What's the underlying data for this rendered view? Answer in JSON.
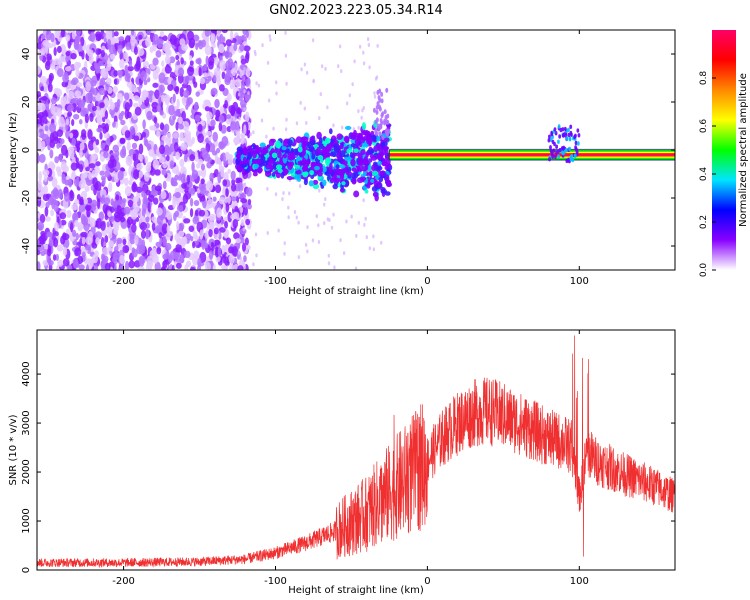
{
  "title": "GN02.2023.223.05.34.R14",
  "chart_data": [
    {
      "type": "heatmap",
      "xlabel": "Height of straight line (km)",
      "ylabel": "Frequency (Hz)",
      "xlim": [
        -257,
        163
      ],
      "ylim": [
        -50,
        50
      ],
      "xticks": [
        -200,
        -100,
        0,
        100
      ],
      "yticks": [
        -40,
        -20,
        0,
        20,
        40
      ],
      "grid": false,
      "colorbar": {
        "label": "Normalized spectral amplitude",
        "range": [
          0,
          1
        ],
        "ticks": [
          "0.0",
          "0.2",
          "0.4",
          "0.6",
          "0.8"
        ],
        "colors": [
          "#ffffff",
          "#8800ff",
          "#0000ff",
          "#00e5ff",
          "#00ff00",
          "#ffff00",
          "#ff8800",
          "#ff0000",
          "#ff0066"
        ]
      },
      "features": [
        {
          "x_range": [
            -257,
            -125
          ],
          "freq_range": [
            -50,
            50
          ],
          "amplitude": 0.1
        },
        {
          "x_range": [
            -125,
            -25
          ],
          "freq_range": [
            -20,
            20
          ],
          "amplitude": 0.25
        },
        {
          "x_range": [
            -25,
            163
          ],
          "freq_center": -2,
          "amplitude": 0.9
        },
        {
          "x_range": [
            80,
            100
          ],
          "freq_range": [
            -5,
            10
          ],
          "amplitude": 0.3
        }
      ]
    },
    {
      "type": "line",
      "xlabel": "Height of straight line (km)",
      "ylabel": "SNR (10 * v/v)",
      "xlim": [
        -257,
        163
      ],
      "ylim": [
        0,
        4900
      ],
      "xticks": [
        -200,
        -100,
        0,
        100
      ],
      "yticks": [
        0,
        1000,
        2000,
        3000,
        4000
      ],
      "grid": false,
      "series": [
        {
          "color": "#f03030",
          "x": [
            -257,
            -200,
            -150,
            -120,
            -100,
            -80,
            -60,
            -40,
            -30,
            -20,
            -10,
            0,
            10,
            20,
            30,
            40,
            50,
            60,
            70,
            80,
            90,
            95,
            98,
            100,
            102,
            105,
            110,
            130,
            150,
            163
          ],
          "y": [
            150,
            150,
            170,
            220,
            350,
            550,
            800,
            1150,
            1450,
            1700,
            1950,
            2250,
            2700,
            3000,
            3200,
            3250,
            3150,
            3000,
            2850,
            2700,
            2600,
            2500,
            2000,
            1500,
            1800,
            2450,
            2250,
            1950,
            1700,
            1500
          ]
        }
      ]
    }
  ]
}
